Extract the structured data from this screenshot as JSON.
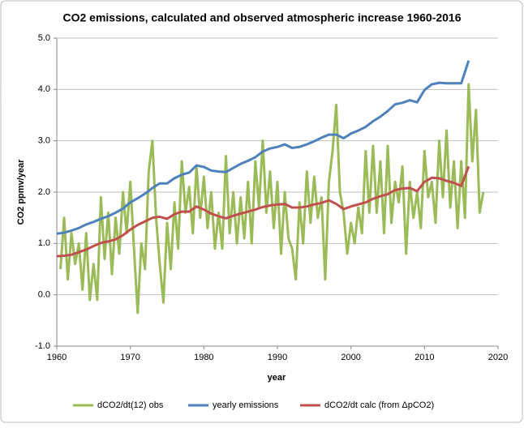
{
  "chart_data": {
    "type": "line",
    "title": "CO2 emissions, calculated and observed atmospheric increase 1960-2016",
    "x_label": "year",
    "y_label": "CO2 ppmv/year",
    "xlim": [
      1960,
      2020
    ],
    "xticks": [
      1960,
      1970,
      1980,
      1990,
      2000,
      2010,
      2020
    ],
    "ylim": [
      -1,
      5
    ],
    "yticks": [
      {
        "value": -1,
        "label": "-1.0"
      },
      {
        "value": 0,
        "label": "0.0"
      },
      {
        "value": 1,
        "label": "1.0"
      },
      {
        "value": 2,
        "label": "2.0"
      },
      {
        "value": 3,
        "label": "3.0"
      },
      {
        "value": 4,
        "label": "4.0"
      },
      {
        "value": 5,
        "label": "5.0"
      }
    ],
    "grid": true,
    "legend": "bottom",
    "series": [
      {
        "name": "dCO2/dt(12) obs",
        "color": "#9bbb59",
        "width": 3,
        "x": [
          1960.5,
          1961,
          1961.5,
          1962,
          1962.5,
          1963,
          1963.5,
          1964,
          1964.5,
          1965,
          1965.5,
          1966,
          1966.5,
          1967,
          1967.5,
          1968,
          1968.5,
          1969,
          1969.5,
          1970,
          1970.5,
          1971,
          1971.5,
          1972,
          1972.5,
          1973,
          1973.5,
          1974,
          1974.5,
          1975,
          1975.5,
          1976,
          1976.5,
          1977,
          1977.5,
          1978,
          1978.5,
          1979,
          1979.5,
          1980,
          1980.5,
          1981,
          1981.5,
          1982,
          1982.5,
          1983,
          1983.5,
          1984,
          1984.5,
          1985,
          1985.5,
          1986,
          1986.5,
          1987,
          1987.5,
          1988,
          1988.5,
          1989,
          1989.5,
          1990,
          1990.5,
          1991,
          1991.5,
          1992,
          1992.5,
          1993,
          1993.5,
          1994,
          1994.5,
          1995,
          1995.5,
          1996,
          1996.5,
          1997,
          1997.5,
          1998,
          1998.5,
          1999,
          1999.5,
          2000,
          2000.5,
          2001,
          2001.5,
          2002,
          2002.5,
          2003,
          2003.5,
          2004,
          2004.5,
          2005,
          2005.5,
          2006,
          2006.5,
          2007,
          2007.5,
          2008,
          2008.5,
          2009,
          2009.5,
          2010,
          2010.5,
          2011,
          2011.5,
          2012,
          2012.5,
          2013,
          2013.5,
          2014,
          2014.5,
          2015,
          2015.5,
          2016,
          2016.5,
          2017,
          2017.5,
          2018
        ],
        "values": [
          0.5,
          1.5,
          0.3,
          1.2,
          0.6,
          1.0,
          0.1,
          1.2,
          -0.1,
          0.6,
          -0.1,
          1.9,
          0.7,
          1.6,
          0.4,
          1.5,
          0.8,
          2.0,
          1.2,
          2.2,
          0.9,
          -0.35,
          1.0,
          0.5,
          2.4,
          3.0,
          1.5,
          0.6,
          -0.15,
          1.4,
          0.5,
          1.8,
          0.9,
          2.6,
          1.6,
          2.1,
          1.2,
          2.5,
          1.5,
          2.3,
          1.3,
          2.0,
          0.9,
          1.6,
          0.9,
          2.7,
          1.2,
          2.0,
          1.0,
          1.9,
          1.1,
          2.2,
          1.0,
          2.6,
          1.7,
          3.0,
          1.6,
          2.4,
          1.3,
          2.2,
          0.8,
          2.0,
          1.1,
          0.9,
          0.3,
          1.8,
          1.0,
          2.4,
          1.4,
          2.3,
          1.5,
          1.9,
          0.3,
          2.2,
          2.8,
          3.7,
          2.0,
          1.6,
          0.8,
          1.4,
          1.0,
          1.7,
          1.2,
          2.8,
          1.6,
          2.9,
          1.6,
          2.6,
          1.2,
          2.9,
          1.4,
          2.2,
          1.8,
          2.5,
          0.8,
          2.2,
          1.5,
          2.0,
          1.3,
          2.8,
          1.9,
          2.2,
          1.4,
          3.0,
          1.9,
          3.2,
          1.7,
          2.6,
          1.3,
          2.6,
          1.5,
          4.1,
          2.6,
          3.6,
          1.6,
          2.0
        ]
      },
      {
        "name": "yearly emissions",
        "color": "#4f81bd",
        "width": 3,
        "x": [
          1960,
          1961,
          1962,
          1963,
          1964,
          1965,
          1966,
          1967,
          1968,
          1969,
          1970,
          1971,
          1972,
          1973,
          1974,
          1975,
          1976,
          1977,
          1978,
          1979,
          1980,
          1981,
          1982,
          1983,
          1984,
          1985,
          1986,
          1987,
          1988,
          1989,
          1990,
          1991,
          1992,
          1993,
          1994,
          1995,
          1996,
          1997,
          1998,
          1999,
          2000,
          2001,
          2002,
          2003,
          2004,
          2005,
          2006,
          2007,
          2008,
          2009,
          2010,
          2011,
          2012,
          2013,
          2014,
          2015,
          2016
        ],
        "values": [
          1.19,
          1.21,
          1.25,
          1.3,
          1.37,
          1.42,
          1.48,
          1.53,
          1.6,
          1.68,
          1.8,
          1.88,
          1.97,
          2.08,
          2.17,
          2.17,
          2.27,
          2.34,
          2.38,
          2.52,
          2.49,
          2.42,
          2.4,
          2.39,
          2.47,
          2.55,
          2.61,
          2.68,
          2.79,
          2.85,
          2.88,
          2.93,
          2.86,
          2.88,
          2.93,
          2.99,
          3.06,
          3.12,
          3.12,
          3.05,
          3.14,
          3.2,
          3.27,
          3.38,
          3.47,
          3.58,
          3.71,
          3.74,
          3.79,
          3.75,
          3.99,
          4.1,
          4.13,
          4.12,
          4.12,
          4.12,
          4.56
        ]
      },
      {
        "name": "dCO2/dt calc (from  ΔpCO2)",
        "color": "#c0504d",
        "width": 3,
        "x": [
          1960,
          1961,
          1962,
          1963,
          1964,
          1965,
          1966,
          1967,
          1968,
          1969,
          1970,
          1971,
          1972,
          1973,
          1974,
          1975,
          1976,
          1977,
          1978,
          1979,
          1980,
          1981,
          1982,
          1983,
          1984,
          1985,
          1986,
          1987,
          1988,
          1989,
          1990,
          1991,
          1992,
          1993,
          1994,
          1995,
          1996,
          1997,
          1998,
          1999,
          2000,
          2001,
          2002,
          2003,
          2004,
          2005,
          2006,
          2007,
          2008,
          2009,
          2010,
          2011,
          2012,
          2013,
          2014,
          2015,
          2016
        ],
        "values": [
          0.75,
          0.76,
          0.78,
          0.83,
          0.88,
          0.95,
          1.01,
          1.04,
          1.08,
          1.16,
          1.27,
          1.36,
          1.43,
          1.5,
          1.52,
          1.48,
          1.57,
          1.62,
          1.62,
          1.72,
          1.66,
          1.58,
          1.53,
          1.49,
          1.54,
          1.58,
          1.62,
          1.66,
          1.71,
          1.74,
          1.76,
          1.77,
          1.7,
          1.7,
          1.72,
          1.76,
          1.79,
          1.84,
          1.77,
          1.67,
          1.72,
          1.76,
          1.8,
          1.87,
          1.92,
          1.96,
          2.04,
          2.07,
          2.08,
          2.02,
          2.2,
          2.28,
          2.27,
          2.22,
          2.18,
          2.12,
          2.5
        ]
      }
    ]
  }
}
